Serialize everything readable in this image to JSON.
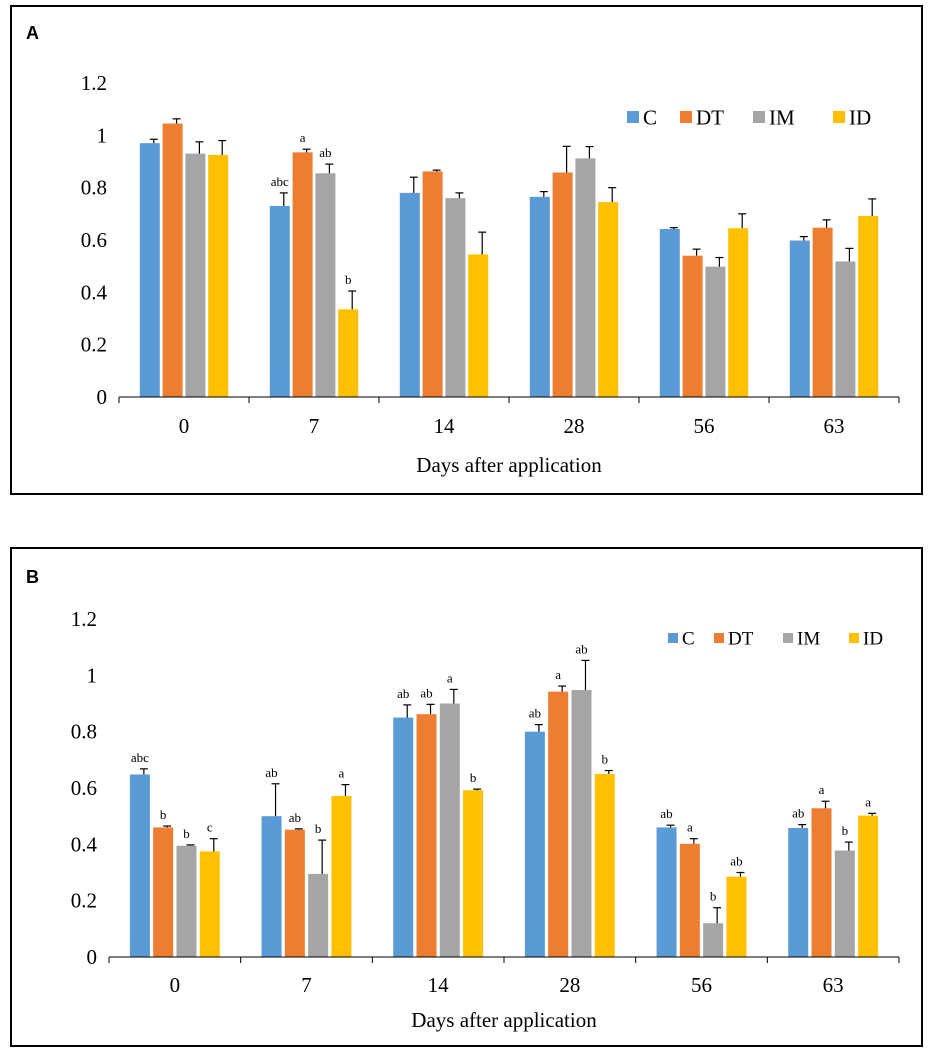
{
  "chart_data": [
    {
      "panel_label": "A",
      "type": "bar",
      "xlabel": "Days after application",
      "ylabel": "",
      "categories": [
        "0",
        "7",
        "14",
        "28",
        "56",
        "63"
      ],
      "ylim": [
        0,
        1.2
      ],
      "yticks": [
        "0",
        "0.2",
        "0.4",
        "0.6",
        "0.8",
        "1",
        "1.2"
      ],
      "legend_position": "top-right",
      "series": [
        {
          "name": "C",
          "color": "#5b9bd5",
          "values": [
            0.97,
            0.73,
            0.78,
            0.765,
            0.642,
            0.598
          ],
          "errors": [
            0.015,
            0.05,
            0.06,
            0.02,
            0.005,
            0.015
          ],
          "labels": [
            "",
            "abc",
            "",
            "",
            "",
            ""
          ]
        },
        {
          "name": "DT",
          "color": "#ed7d31",
          "values": [
            1.045,
            0.935,
            0.862,
            0.858,
            0.54,
            0.647
          ],
          "errors": [
            0.018,
            0.012,
            0.005,
            0.1,
            0.025,
            0.03
          ],
          "labels": [
            "",
            "a",
            "",
            "",
            "",
            ""
          ]
        },
        {
          "name": "IM",
          "color": "#a5a5a5",
          "values": [
            0.93,
            0.855,
            0.76,
            0.912,
            0.498,
            0.518
          ],
          "errors": [
            0.045,
            0.035,
            0.02,
            0.045,
            0.035,
            0.05
          ],
          "labels": [
            "",
            "ab",
            "",
            "",
            "",
            ""
          ]
        },
        {
          "name": "ID",
          "color": "#ffc000",
          "values": [
            0.925,
            0.335,
            0.545,
            0.745,
            0.645,
            0.692
          ],
          "errors": [
            0.055,
            0.07,
            0.085,
            0.055,
            0.055,
            0.065
          ],
          "labels": [
            "",
            "b",
            "",
            "",
            "",
            ""
          ]
        }
      ]
    },
    {
      "panel_label": "B",
      "type": "bar",
      "xlabel": "Days after application",
      "ylabel": "",
      "categories": [
        "0",
        "7",
        "14",
        "28",
        "56",
        "63"
      ],
      "ylim": [
        0,
        1.2
      ],
      "yticks": [
        "0",
        "0.2",
        "0.4",
        "0.6",
        "0.8",
        "1",
        "1.2"
      ],
      "legend_position": "top-right",
      "series": [
        {
          "name": "C",
          "color": "#5b9bd5",
          "values": [
            0.648,
            0.5,
            0.85,
            0.8,
            0.46,
            0.458
          ],
          "errors": [
            0.02,
            0.115,
            0.045,
            0.025,
            0.008,
            0.012
          ],
          "labels": [
            "abc",
            "ab",
            "ab",
            "ab",
            "ab",
            "ab"
          ]
        },
        {
          "name": "DT",
          "color": "#ed7d31",
          "values": [
            0.46,
            0.452,
            0.862,
            0.942,
            0.402,
            0.528
          ],
          "errors": [
            0.005,
            0.003,
            0.035,
            0.02,
            0.018,
            0.025
          ],
          "labels": [
            "b",
            "ab",
            "ab",
            "a",
            "a",
            "a"
          ]
        },
        {
          "name": "IM",
          "color": "#a5a5a5",
          "values": [
            0.395,
            0.295,
            0.9,
            0.948,
            0.12,
            0.378
          ],
          "errors": [
            0.003,
            0.12,
            0.05,
            0.105,
            0.055,
            0.03
          ],
          "labels": [
            "b",
            "b",
            "a",
            "ab",
            "b",
            "b"
          ]
        },
        {
          "name": "ID",
          "color": "#ffc000",
          "values": [
            0.375,
            0.572,
            0.592,
            0.65,
            0.285,
            0.502
          ],
          "errors": [
            0.045,
            0.04,
            0.004,
            0.012,
            0.015,
            0.008
          ],
          "labels": [
            "c",
            "a",
            "b",
            "b",
            "ab",
            "a"
          ]
        }
      ]
    }
  ]
}
